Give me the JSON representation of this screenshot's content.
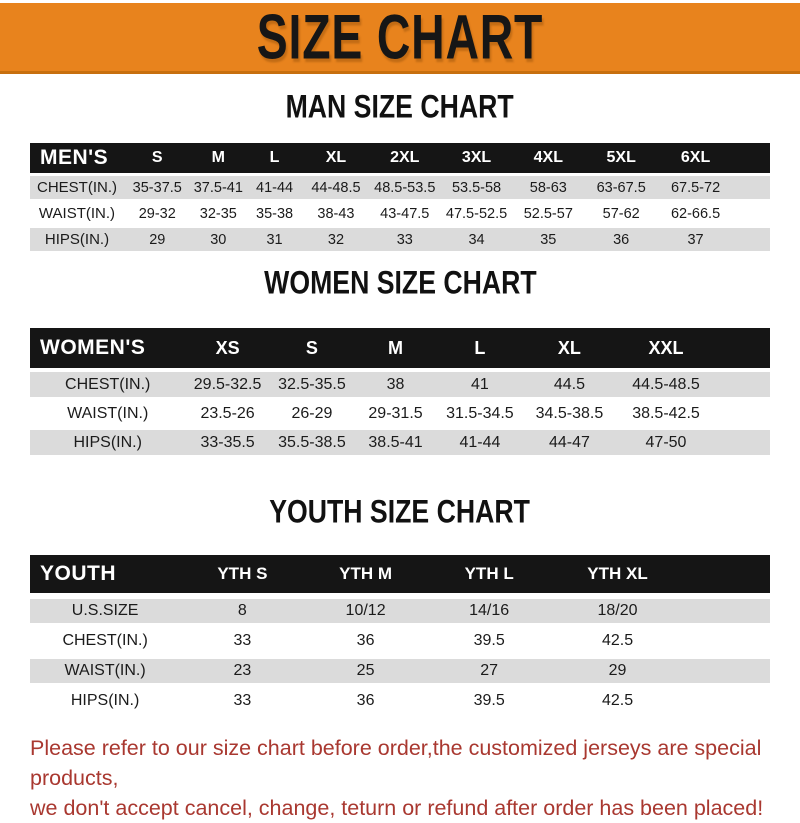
{
  "banner": {
    "title": "SIZE CHART"
  },
  "colors": {
    "banner_orange": "#E8831D",
    "banner_border": "#C76F0F",
    "header_black": "#151515",
    "row_gray": "#DBDBDB",
    "note_red": "#A93830"
  },
  "sections": [
    {
      "heading": "MAN SIZE CHART",
      "header_label": "MEN'S",
      "columns": [
        "S",
        "M",
        "L",
        "XL",
        "2XL",
        "3XL",
        "4XL",
        "5XL",
        "6XL"
      ],
      "rows": [
        {
          "label": "CHEST(IN.)",
          "values": [
            "35-37.5",
            "37.5-41",
            "41-44",
            "44-48.5",
            "48.5-53.5",
            "53.5-58",
            "58-63",
            "63-67.5",
            "67.5-72"
          ]
        },
        {
          "label": "WAIST(IN.)",
          "values": [
            "29-32",
            "32-35",
            "35-38",
            "38-43",
            "43-47.5",
            "47.5-52.5",
            "52.5-57",
            "57-62",
            "62-66.5"
          ]
        },
        {
          "label": "HIPS(IN.)",
          "values": [
            "29",
            "30",
            "31",
            "32",
            "33",
            "34",
            "35",
            "36",
            "37"
          ]
        }
      ]
    },
    {
      "heading": "WOMEN SIZE CHART",
      "header_label": "WOMEN'S",
      "columns": [
        "XS",
        "S",
        "M",
        "L",
        "XL",
        "XXL"
      ],
      "rows": [
        {
          "label": "CHEST(IN.)",
          "values": [
            "29.5-32.5",
            "32.5-35.5",
            "38",
            "41",
            "44.5",
            "44.5-48.5"
          ]
        },
        {
          "label": "WAIST(IN.)",
          "values": [
            "23.5-26",
            "26-29",
            "29-31.5",
            "31.5-34.5",
            "34.5-38.5",
            "38.5-42.5"
          ]
        },
        {
          "label": "HIPS(IN.)",
          "values": [
            "33-35.5",
            "35.5-38.5",
            "38.5-41",
            "41-44",
            "44-47",
            "47-50"
          ]
        }
      ]
    },
    {
      "heading": "YOUTH SIZE CHART",
      "header_label": "YOUTH",
      "columns": [
        "YTH S",
        "YTH M",
        "YTH L",
        "YTH XL"
      ],
      "rows": [
        {
          "label": "U.S.SIZE",
          "values": [
            "8",
            "10/12",
            "14/16",
            "18/20"
          ]
        },
        {
          "label": "CHEST(IN.)",
          "values": [
            "33",
            "36",
            "39.5",
            "42.5"
          ]
        },
        {
          "label": "WAIST(IN.)",
          "values": [
            "23",
            "25",
            "27",
            "29"
          ]
        },
        {
          "label": "HIPS(IN.)",
          "values": [
            "33",
            "36",
            "39.5",
            "42.5"
          ]
        }
      ]
    }
  ],
  "footer": {
    "line1": "Please refer to our size chart before order,the customized jerseys are special products,",
    "line2": "we don't accept cancel, change, teturn or refund after order has been placed!"
  }
}
